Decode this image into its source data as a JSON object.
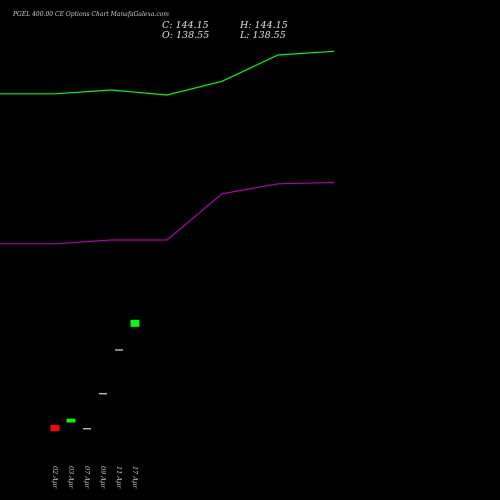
{
  "title": "PGEL 400.00 CE Options Chart ManafaGalexa.com",
  "ohlc": {
    "close": "C: 144.15",
    "open": "O: 138.55",
    "high": "H: 144.15",
    "low": "L: 138.55"
  },
  "colors": {
    "background": "#000000",
    "upper_band": "#00ff00",
    "lower_band": "#b000b0",
    "bull": "#00ff00",
    "bear": "#ff0000",
    "doji": "#c8e6c8",
    "tick_text": "#cccccc"
  },
  "chart_data": {
    "type": "candlestick",
    "x_labels": [
      "02 Apr",
      "03 Apr",
      "07 Apr",
      "09 Apr",
      "11 Apr",
      "17 Apr"
    ],
    "candles": [
      {
        "open": 60,
        "high": 60,
        "low": 55,
        "close": 55,
        "color": "bear"
      },
      {
        "open": 62,
        "high": 65,
        "low": 62,
        "close": 65,
        "color": "bull"
      },
      {
        "open": 57,
        "high": 57,
        "low": 57,
        "close": 57,
        "color": "doji"
      },
      {
        "open": 85,
        "high": 85,
        "low": 85,
        "close": 85,
        "color": "doji"
      },
      {
        "open": 120,
        "high": 120,
        "low": 120,
        "close": 120,
        "color": "doji"
      },
      {
        "open": 138.55,
        "high": 144.15,
        "low": 138.55,
        "close": 144.15,
        "color": "bull"
      }
    ],
    "upper_band": {
      "x": [
        -0.5,
        0,
        1,
        2,
        3,
        4,
        5
      ],
      "values": [
        325,
        325,
        328,
        324,
        335,
        356,
        359
      ]
    },
    "lower_band": {
      "x": [
        -0.5,
        0,
        1,
        2,
        3,
        4,
        5
      ],
      "values": [
        205,
        205,
        208,
        208,
        245,
        253,
        254
      ]
    },
    "ylim": [
      0,
      400
    ]
  }
}
